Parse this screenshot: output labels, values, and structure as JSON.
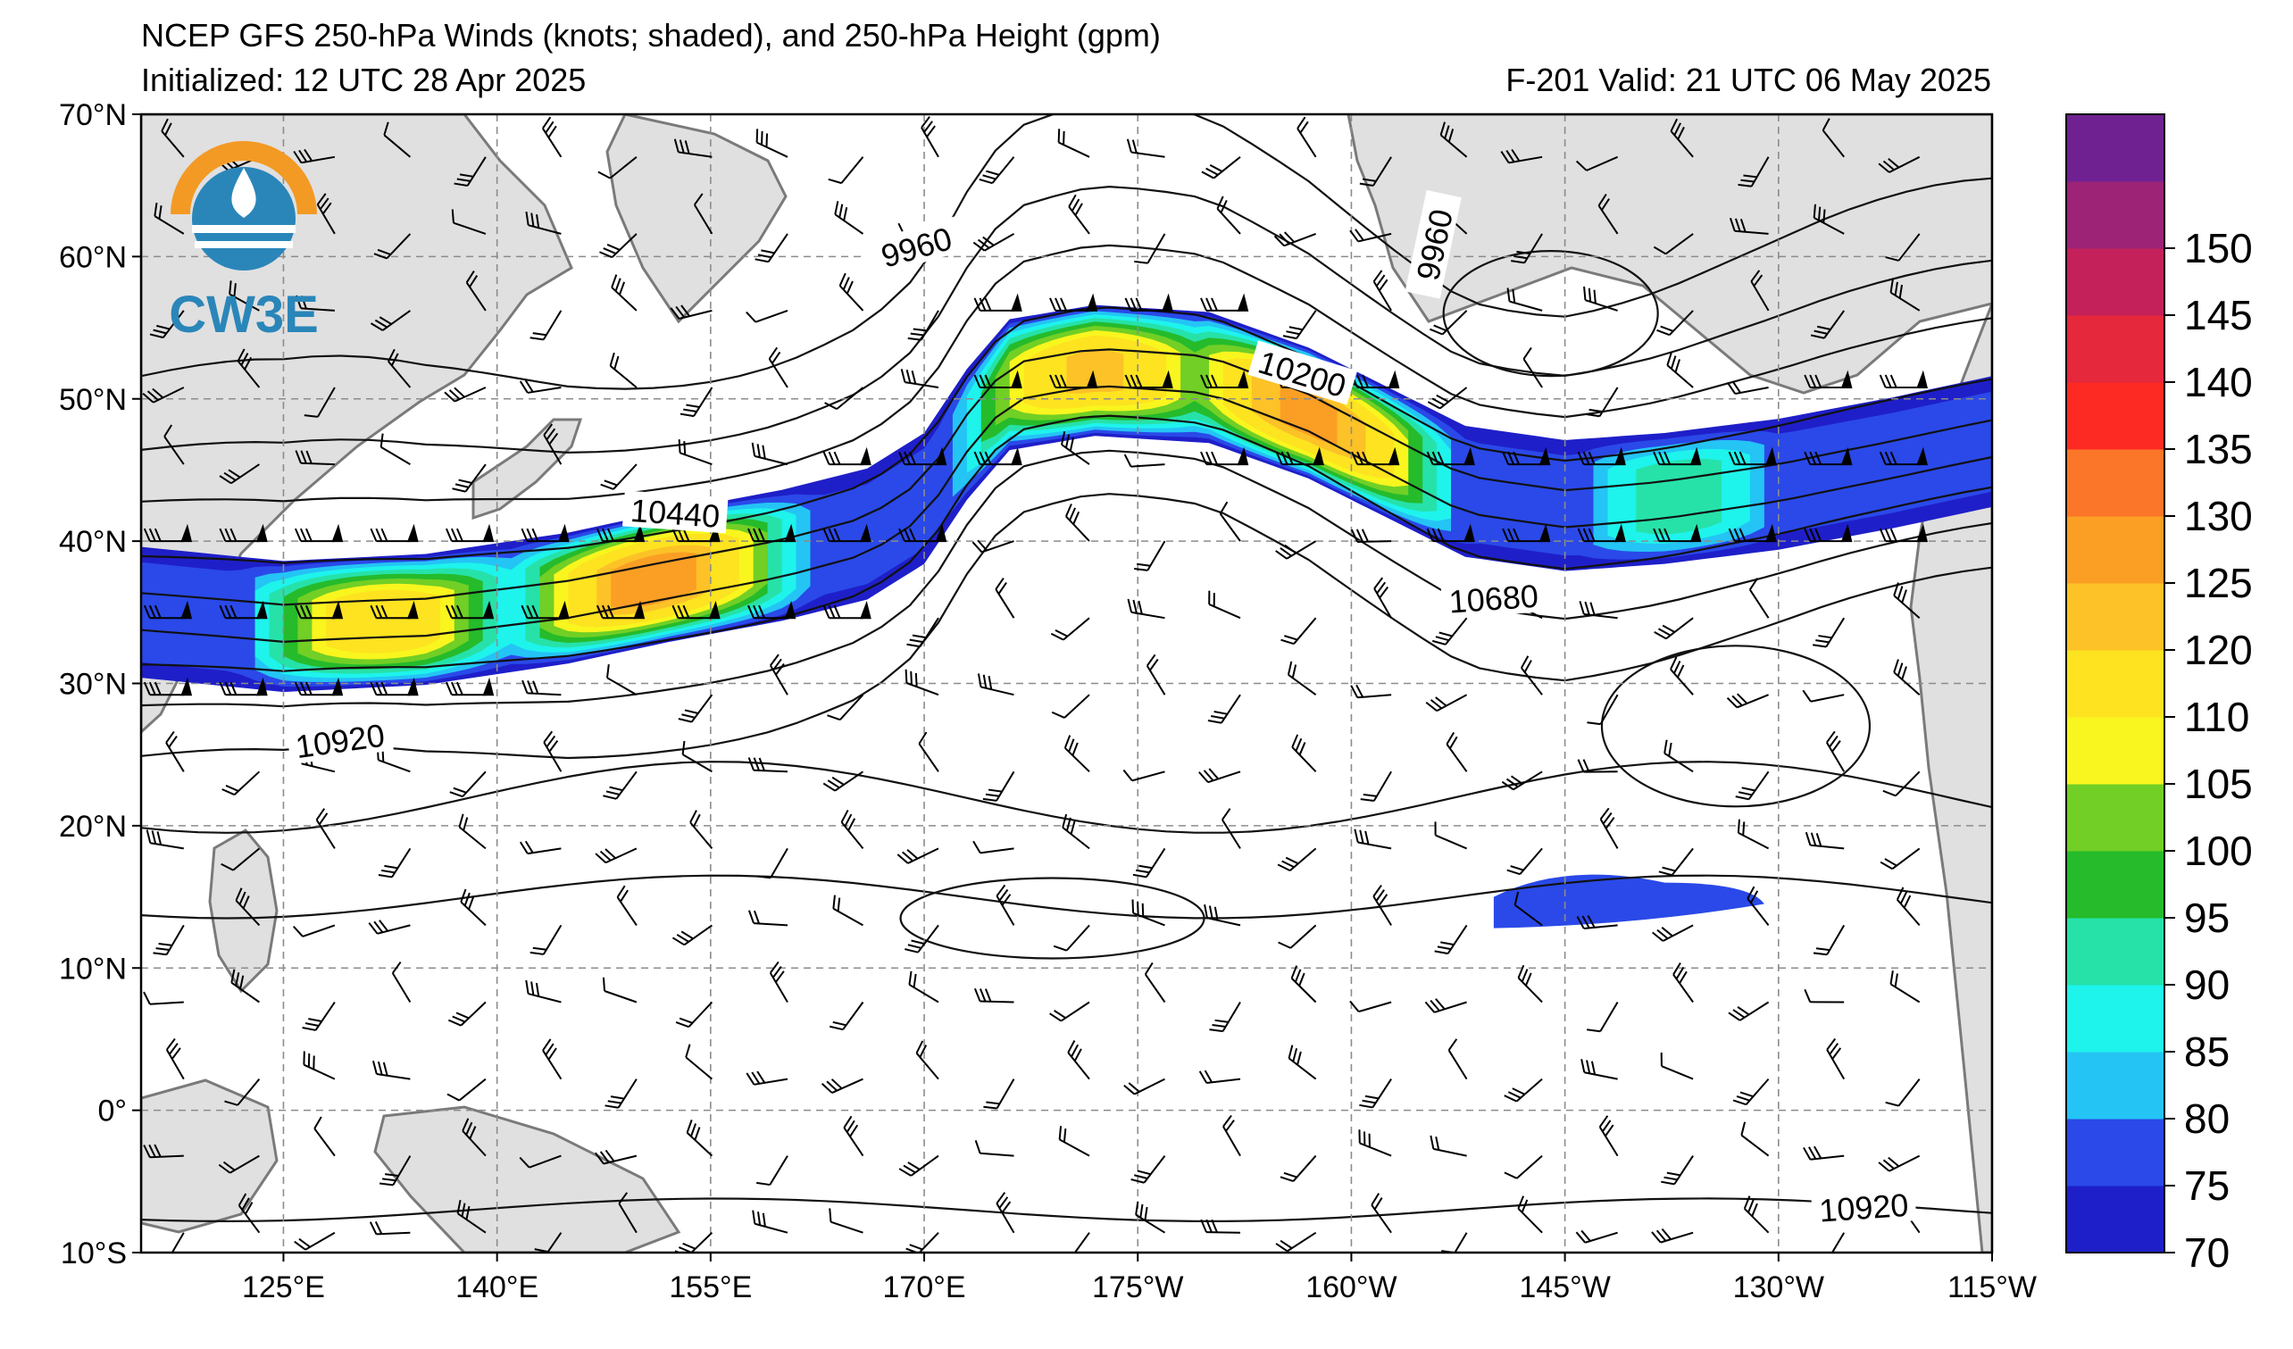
{
  "header": {
    "title": "NCEP GFS 250-hPa Winds (knots; shaded), and 250-hPa Height (gpm)",
    "initialized": "Initialized: 12 UTC 28 Apr 2025",
    "valid": "F-201  Valid: 21 UTC 06 May 2025"
  },
  "logo": {
    "text": "CW3E",
    "colors": {
      "orange": "#f39a25",
      "blue": "#2a86b9"
    }
  },
  "map": {
    "projection": "equirectangular",
    "lon_range": [
      115,
      245
    ],
    "lat_range": [
      -10,
      70
    ],
    "lat_ticks": [
      {
        "lat": 70,
        "label": "70°N"
      },
      {
        "lat": 60,
        "label": "60°N"
      },
      {
        "lat": 50,
        "label": "50°N"
      },
      {
        "lat": 40,
        "label": "40°N"
      },
      {
        "lat": 30,
        "label": "30°N"
      },
      {
        "lat": 20,
        "label": "20°N"
      },
      {
        "lat": 10,
        "label": "10°N"
      },
      {
        "lat": 0,
        "label": "0°"
      },
      {
        "lat": -10,
        "label": "10°S"
      }
    ],
    "lon_ticks": [
      {
        "lon": 125,
        "label": "125°E"
      },
      {
        "lon": 140,
        "label": "140°E"
      },
      {
        "lon": 155,
        "label": "155°E"
      },
      {
        "lon": 170,
        "label": "170°E"
      },
      {
        "lon": 185,
        "label": "175°W"
      },
      {
        "lon": 200,
        "label": "160°W"
      },
      {
        "lon": 215,
        "label": "145°W"
      },
      {
        "lon": 230,
        "label": "130°W"
      },
      {
        "lon": 245,
        "label": "115°W"
      }
    ],
    "contour_labels": [
      {
        "text": "9960",
        "lon": 169.5,
        "lat": 60.5,
        "rotation": -16
      },
      {
        "text": "9960",
        "lon": 206,
        "lat": 60.8,
        "rotation": -78
      },
      {
        "text": "10200",
        "lon": 196.5,
        "lat": 51.6,
        "rotation": 17
      },
      {
        "text": "10440",
        "lon": 152.5,
        "lat": 41.8,
        "rotation": 4
      },
      {
        "text": "10680",
        "lon": 210,
        "lat": 35.8,
        "rotation": -4
      },
      {
        "text": "10920",
        "lon": 129,
        "lat": 25.8,
        "rotation": -8
      },
      {
        "text": "10920",
        "lon": 236,
        "lat": -7,
        "rotation": -4
      }
    ],
    "colors": {
      "land": "#e0e0e0",
      "coast": "#7a7a7a",
      "grid": "#8c8c8c"
    }
  },
  "colorbar": {
    "ticks": [
      "70",
      "75",
      "80",
      "85",
      "90",
      "95",
      "100",
      "105",
      "110",
      "120",
      "125",
      "130",
      "135",
      "140",
      "145",
      "150"
    ],
    "colors": [
      "#1f1fc9",
      "#2a49e8",
      "#24c4f5",
      "#1ef3ec",
      "#26e2a9",
      "#25bb2b",
      "#71cf25",
      "#f9f51e",
      "#fde320",
      "#fcc227",
      "#fb9f24",
      "#fb7628",
      "#fc2a23",
      "#e5283b",
      "#c4215b",
      "#9c2375",
      "#6f2191"
    ]
  },
  "jet": {
    "min_speed": 70,
    "cores": [
      {
        "lon": 151,
        "lat": 37.0,
        "speed": 130
      },
      {
        "lon": 132,
        "lat": 34.0,
        "speed": 118
      },
      {
        "lon": 182,
        "lat": 51.5,
        "speed": 122
      },
      {
        "lon": 197,
        "lat": 49.0,
        "speed": 128
      },
      {
        "lon": 223,
        "lat": 46.5,
        "speed": 95
      }
    ]
  }
}
